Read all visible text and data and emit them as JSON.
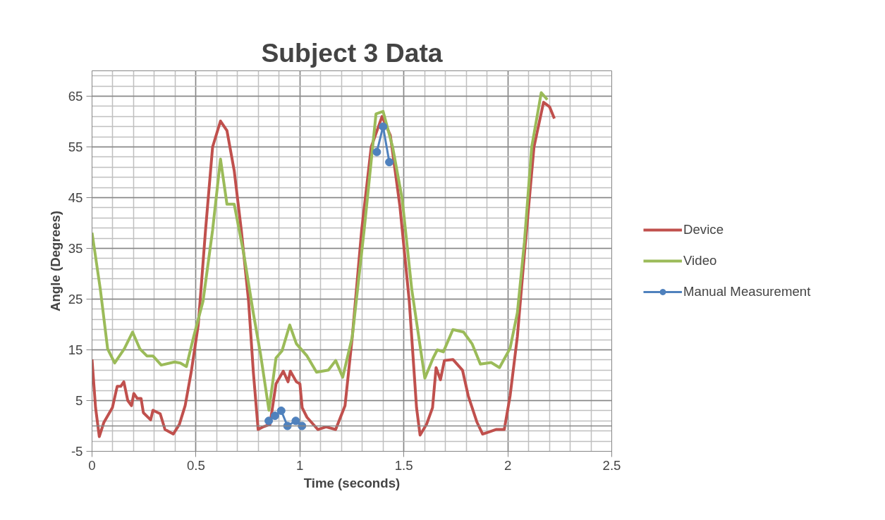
{
  "chart_data": {
    "type": "line",
    "title": "Subject 3 Data",
    "xlabel": "Time (seconds)",
    "ylabel": "Angle (Degrees)",
    "xlim": [
      0,
      2.5
    ],
    "xticks": [
      0,
      0.5,
      1,
      1.5,
      2,
      2.5
    ],
    "ylim": [
      -5,
      70
    ],
    "yticks": [
      -5,
      5,
      15,
      25,
      35,
      45,
      55,
      65
    ],
    "grid": true,
    "legend": "right",
    "line_style": "solid",
    "ref_lines": [
      {
        "axis": "y",
        "value": 0,
        "color": "#868686"
      }
    ],
    "series": [
      {
        "name": "Device",
        "color": "#c0504d",
        "marker": "none",
        "x": [
          0,
          0.017,
          0.035,
          0.057,
          0.098,
          0.121,
          0.138,
          0.153,
          0.172,
          0.19,
          0.201,
          0.218,
          0.236,
          0.247,
          0.282,
          0.293,
          0.328,
          0.351,
          0.391,
          0.42,
          0.448,
          0.477,
          0.511,
          0.546,
          0.58,
          0.618,
          0.649,
          0.684,
          0.718,
          0.753,
          0.776,
          0.799,
          0.822,
          0.856,
          0.885,
          0.92,
          0.943,
          0.954,
          0.983,
          1.0,
          1.011,
          1.034,
          1.086,
          1.126,
          1.172,
          1.217,
          1.252,
          1.297,
          1.343,
          1.395,
          1.435,
          1.481,
          1.526,
          1.561,
          1.578,
          1.609,
          1.638,
          1.655,
          1.676,
          1.695,
          1.736,
          1.782,
          1.81,
          1.851,
          1.879,
          1.943,
          1.983,
          2.011,
          2.046,
          2.08,
          2.126,
          2.172,
          2.201,
          2.224
        ],
        "values": [
          13.1,
          3.6,
          -2.1,
          0.7,
          3.6,
          7.8,
          7.8,
          8.7,
          5,
          4,
          6.4,
          5.4,
          5.4,
          2.6,
          1.2,
          3.1,
          2.4,
          -0.7,
          -1.6,
          0.3,
          4,
          10.6,
          19.9,
          38.6,
          55,
          60.1,
          58.2,
          50.3,
          38.6,
          24.6,
          10.6,
          -0.7,
          -0.2,
          0.3,
          8.3,
          10.8,
          8.7,
          10.8,
          8.7,
          8.3,
          3.6,
          1.7,
          -0.7,
          -0.2,
          -0.7,
          4,
          17.6,
          38.6,
          55,
          61,
          57.3,
          43.3,
          24.6,
          3.6,
          -1.8,
          0.3,
          3.6,
          11.5,
          9.1,
          12.9,
          13.1,
          11,
          5.9,
          0.8,
          -1.6,
          -0.7,
          -0.7,
          5.9,
          17.6,
          33.9,
          55,
          63.8,
          62.9,
          60.6
        ]
      },
      {
        "name": "Video",
        "color": "#9bbb59",
        "marker": "none",
        "x": [
          0,
          0.04,
          0.075,
          0.109,
          0.155,
          0.195,
          0.23,
          0.264,
          0.293,
          0.333,
          0.397,
          0.425,
          0.454,
          0.489,
          0.534,
          0.58,
          0.618,
          0.649,
          0.684,
          0.73,
          0.776,
          0.81,
          0.851,
          0.885,
          0.914,
          0.951,
          0.983,
          1.034,
          1.08,
          1.137,
          1.172,
          1.206,
          1.252,
          1.309,
          1.366,
          1.4,
          1.446,
          1.492,
          1.538,
          1.601,
          1.641,
          1.661,
          1.69,
          1.736,
          1.787,
          1.828,
          1.868,
          1.92,
          1.96,
          2.011,
          2.046,
          2.08,
          2.115,
          2.161,
          2.19
        ],
        "values": [
          38.1,
          26.9,
          15.2,
          12.4,
          15.2,
          18.5,
          15.2,
          13.8,
          13.8,
          12,
          12.6,
          12.4,
          11.7,
          17.6,
          24.6,
          38.6,
          52.6,
          43.7,
          43.7,
          33.9,
          22.2,
          14.3,
          3.1,
          13.4,
          14.8,
          19.9,
          16.2,
          13.8,
          10.6,
          11,
          12.9,
          9.6,
          17.6,
          38.6,
          61.5,
          62,
          55,
          44.7,
          26.9,
          9.4,
          13.4,
          15,
          14.6,
          19,
          18.5,
          16.2,
          12.2,
          12.5,
          11.5,
          15.3,
          22.3,
          36.3,
          55,
          65.7,
          64.3
        ]
      },
      {
        "name": "Manual Measurement",
        "color": "#4f81bd",
        "marker": "circle",
        "x": [
          0.85,
          0.88,
          0.91,
          0.94,
          0.98,
          1.01,
          1.2,
          1.37,
          1.4,
          1.43
        ],
        "values": [
          1,
          2,
          3,
          0,
          1,
          0,
          null,
          54,
          59,
          52
        ]
      }
    ]
  }
}
